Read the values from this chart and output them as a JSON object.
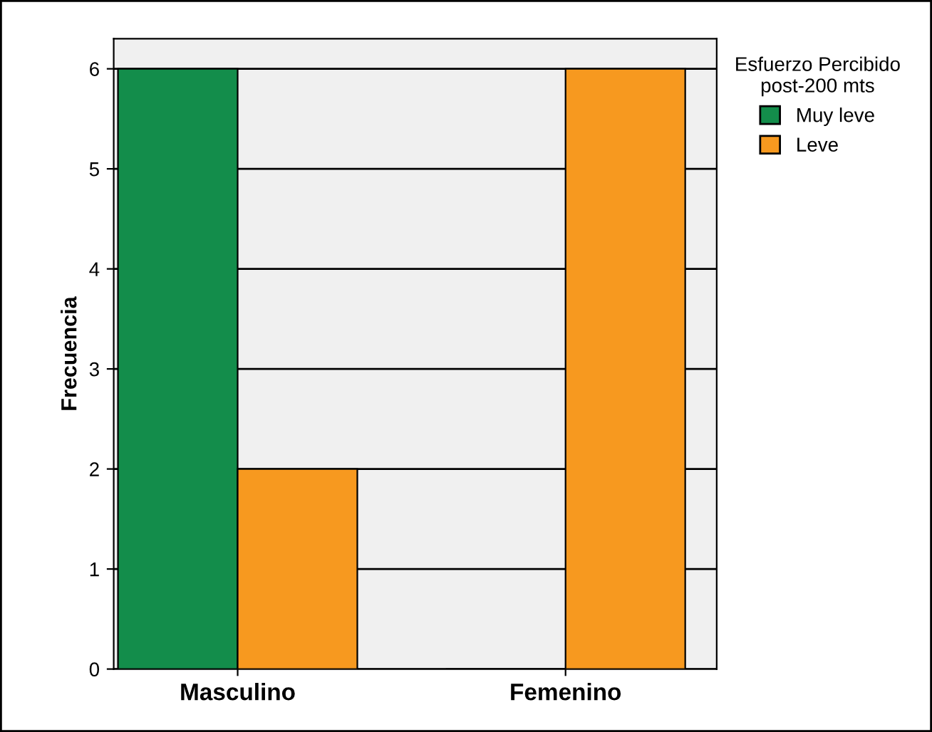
{
  "chart_data": {
    "type": "bar",
    "ylabel": "Frecuencia",
    "legend_title": "Esfuerzo Percibido\npost-200 mts",
    "categories": [
      "Masculino",
      "Femenino"
    ],
    "series": [
      {
        "name": "Muy leve",
        "color": "#138d4b",
        "values": [
          6,
          0
        ]
      },
      {
        "name": "Leve",
        "color": "#f7991f",
        "values": [
          2,
          6
        ]
      }
    ],
    "ylim": [
      0,
      6.3
    ],
    "yticks": [
      0,
      1,
      2,
      3,
      4,
      5,
      6
    ],
    "grid": "y",
    "legend": "right"
  }
}
